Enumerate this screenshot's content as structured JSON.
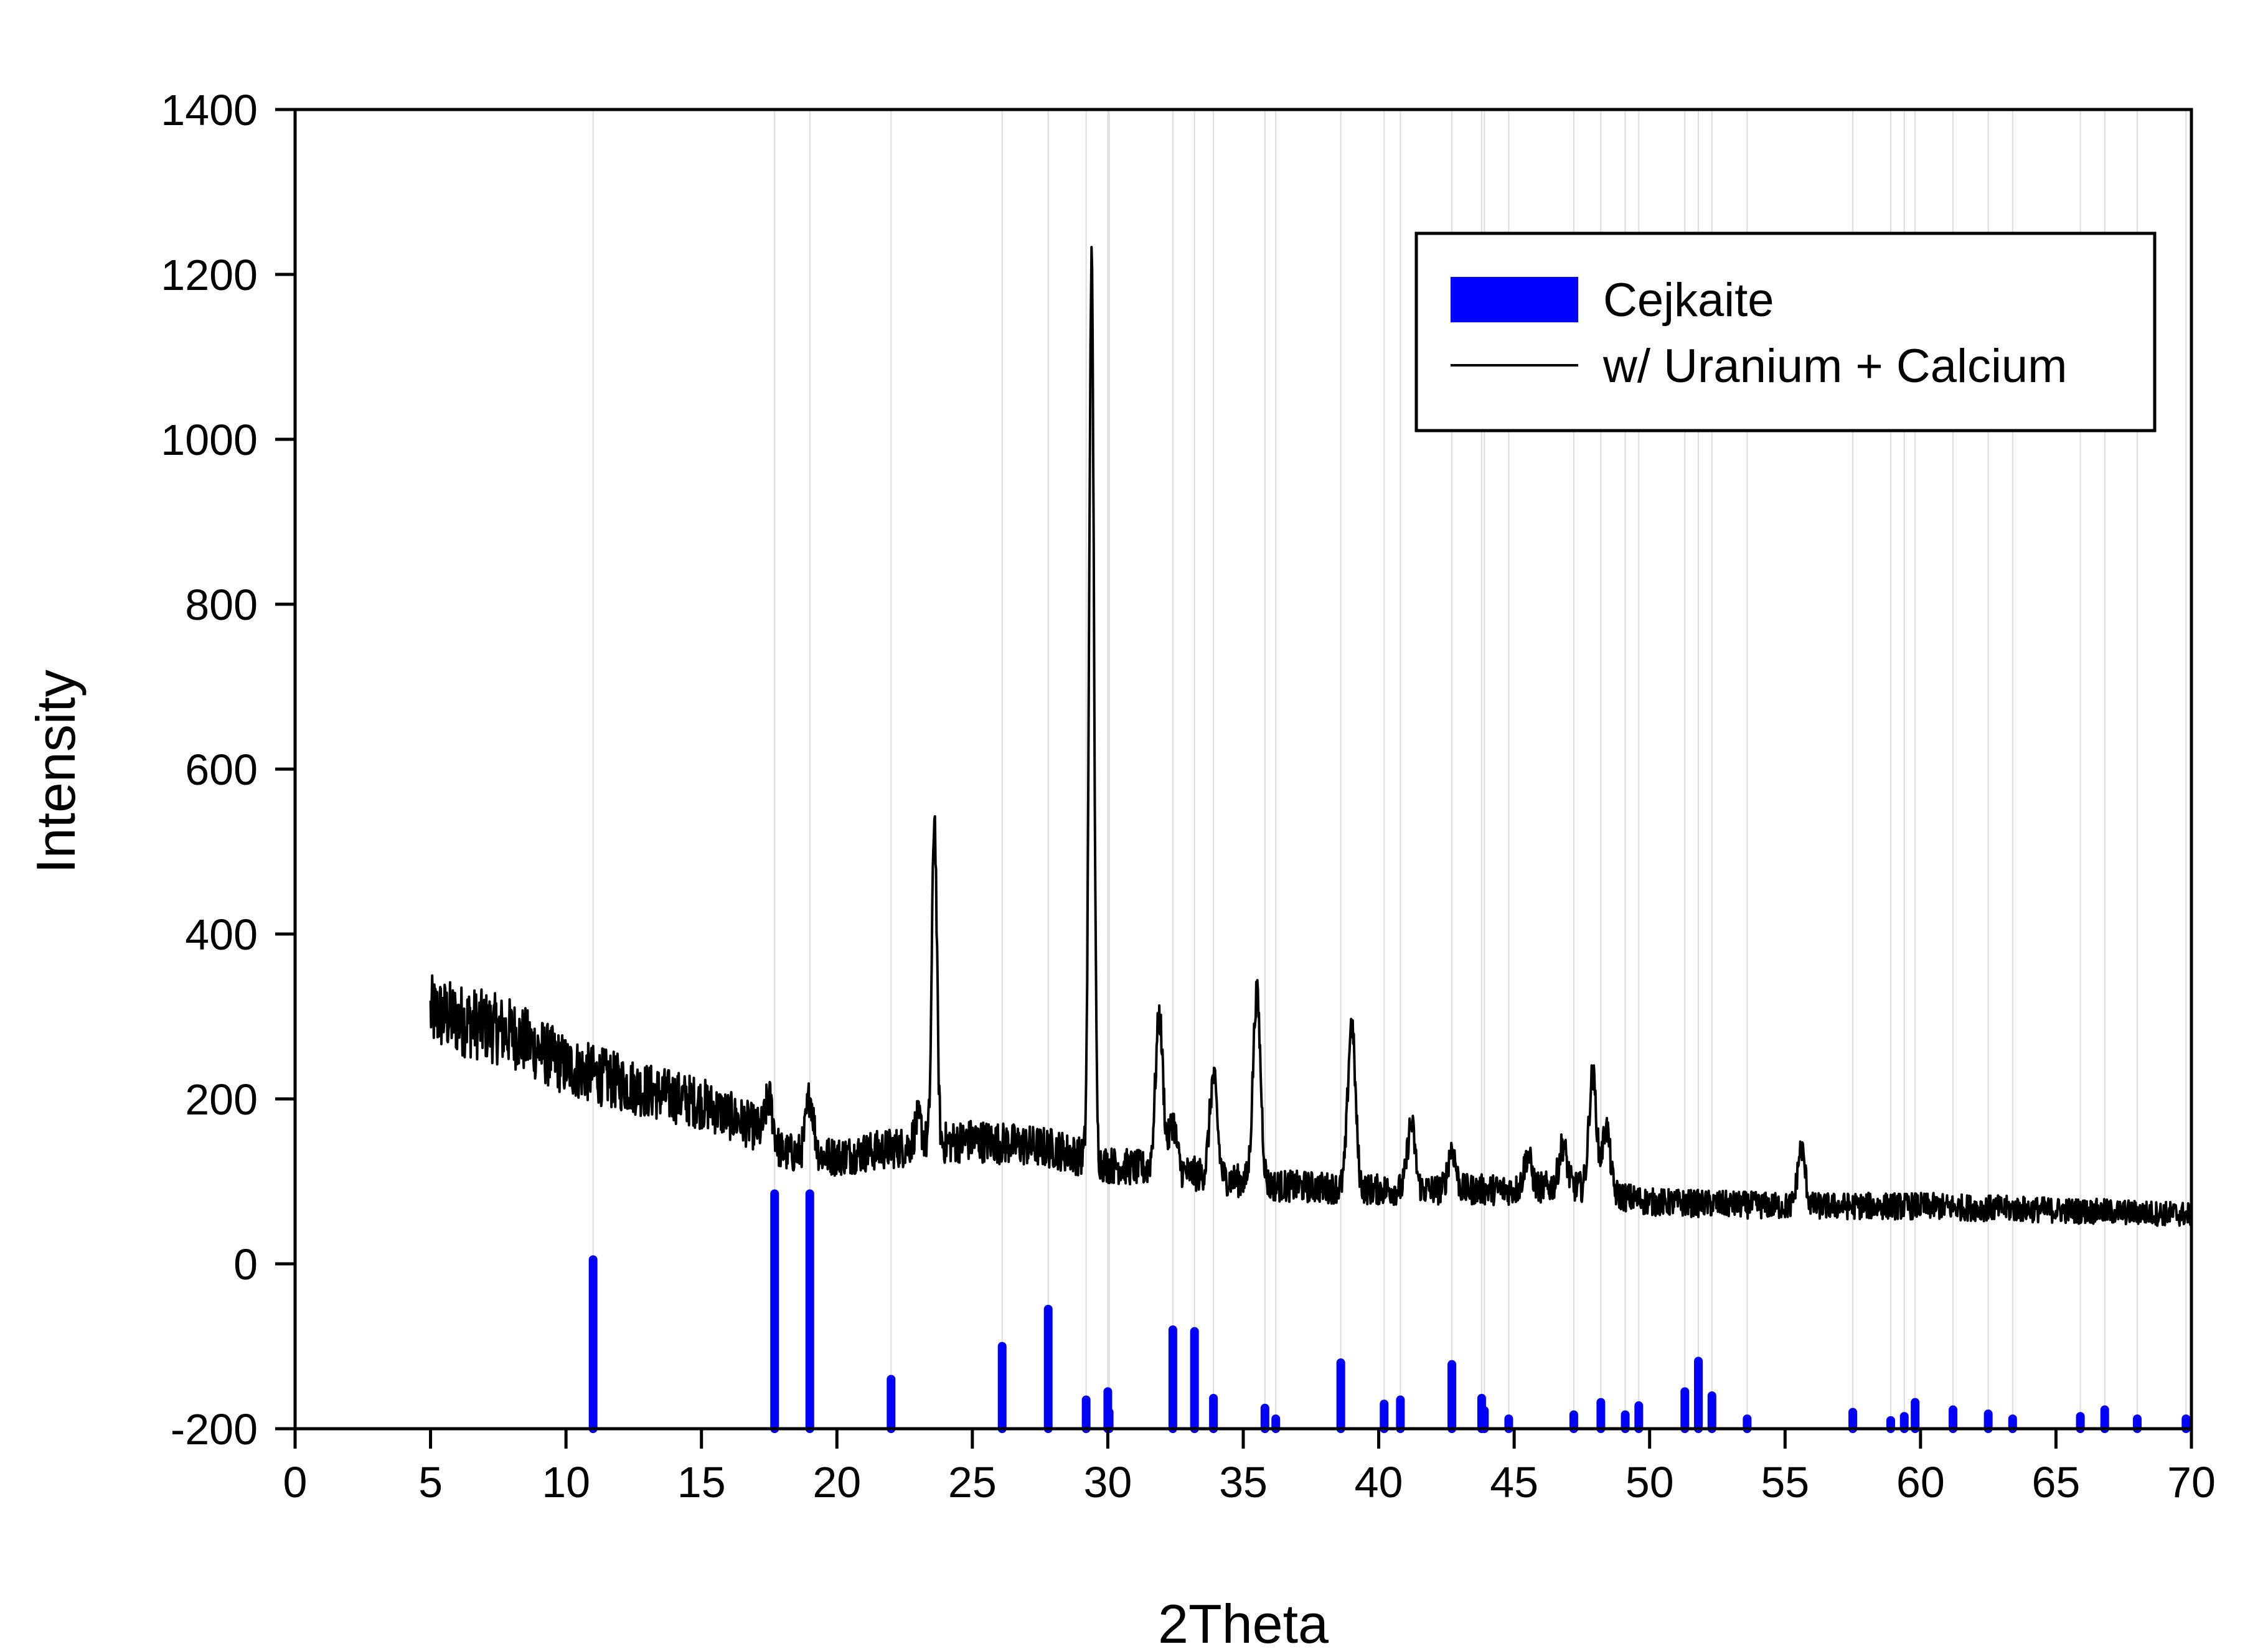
{
  "chart_data": {
    "type": "line",
    "title": "",
    "xlabel": "2Theta",
    "ylabel": "Intensity",
    "xlim": [
      0,
      70
    ],
    "ylim": [
      -200,
      1400
    ],
    "xticks": [
      0,
      5,
      10,
      15,
      20,
      25,
      30,
      35,
      40,
      45,
      50,
      55,
      60,
      65,
      70
    ],
    "yticks": [
      -200,
      0,
      200,
      400,
      600,
      800,
      1000,
      1200,
      1400
    ],
    "grid": "vertical lines at reference peak positions",
    "legend_position": "top-right",
    "colors": {
      "reference": "#0000ff",
      "measured": "#000000",
      "grid": "#dcdcdc"
    },
    "series": [
      {
        "name": "Cejkaite",
        "kind": "stick",
        "baseline": -200,
        "x": [
          11.0,
          17.7,
          19.0,
          22.0,
          26.1,
          27.8,
          29.2,
          30.0,
          30.05,
          32.4,
          33.2,
          33.9,
          35.8,
          36.2,
          38.6,
          40.2,
          40.8,
          42.7,
          43.8,
          43.9,
          44.8,
          47.2,
          48.2,
          49.1,
          49.6,
          51.3,
          51.8,
          52.3,
          53.6,
          57.5,
          58.9,
          59.4,
          59.8,
          61.2,
          62.5,
          63.4,
          65.9,
          66.8,
          68.0,
          69.8
        ],
        "y": [
          5,
          85,
          85,
          -140,
          -100,
          -55,
          -165,
          -155,
          -180,
          -80,
          -82,
          -163,
          -175,
          -188,
          -120,
          -170,
          -165,
          -122,
          -163,
          -178,
          -188,
          -183,
          -168,
          -183,
          -172,
          -155,
          -118,
          -160,
          -188,
          -180,
          -190,
          -185,
          -168,
          -177,
          -182,
          -188,
          -185,
          -177,
          -188,
          -188
        ]
      },
      {
        "name": "w/ Uranium + Calcium",
        "kind": "line",
        "x_range": [
          5,
          70
        ],
        "background": {
          "x": [
            5,
            8,
            10,
            13,
            15,
            17,
            18,
            20,
            22,
            25,
            28,
            30,
            33,
            36,
            40,
            45,
            47,
            50,
            55,
            60,
            65,
            70
          ],
          "y": [
            305,
            280,
            240,
            210,
            195,
            165,
            135,
            130,
            140,
            150,
            140,
            120,
            110,
            95,
            90,
            90,
            95,
            75,
            70,
            70,
            65,
            60
          ]
        },
        "peaks": {
          "x": [
            17.5,
            19.0,
            23.0,
            23.6,
            29.4,
            31.9,
            32.4,
            33.9,
            35.5,
            39.0,
            41.2,
            42.7,
            45.5,
            46.8,
            47.9,
            48.4,
            55.6
          ],
          "height": [
            50,
            70,
            30,
            400,
            1090,
            185,
            60,
            120,
            230,
            200,
            80,
            50,
            40,
            50,
            140,
            80,
            70
          ]
        },
        "noise_amplitude": 25
      }
    ]
  }
}
